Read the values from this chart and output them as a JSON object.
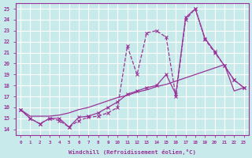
{
  "background_color": "#c8eaea",
  "grid_color": "#ffffff",
  "line_color": "#993399",
  "x_ticks": [
    0,
    1,
    2,
    3,
    4,
    5,
    6,
    7,
    8,
    9,
    10,
    11,
    12,
    13,
    14,
    15,
    16,
    17,
    18,
    19,
    20,
    21,
    22,
    23
  ],
  "y_ticks": [
    14,
    15,
    16,
    17,
    18,
    19,
    20,
    21,
    22,
    23,
    24,
    25
  ],
  "ylim": [
    13.5,
    25.5
  ],
  "xlim": [
    -0.5,
    23.5
  ],
  "xlabel": "Windchill (Refroidissement éolien,°C)",
  "series1": [
    15.8,
    15.0,
    14.5,
    15.0,
    15.0,
    14.2,
    15.1,
    15.2,
    15.5,
    16.0,
    16.5,
    17.2,
    17.5,
    17.8,
    18.0,
    19.0,
    17.2,
    24.2,
    25.0,
    22.3,
    21.1,
    19.8,
    18.5,
    17.8
  ],
  "series2": [
    15.8,
    15.0,
    14.5,
    15.0,
    14.8,
    14.2,
    14.8,
    15.1,
    15.2,
    15.5,
    16.0,
    21.6,
    19.0,
    22.8,
    23.0,
    22.4,
    17.0,
    24.0,
    25.0,
    22.2,
    21.0,
    19.8,
    18.5,
    17.8
  ],
  "series3": [
    15.8,
    15.2,
    15.2,
    15.2,
    15.3,
    15.5,
    15.8,
    16.0,
    16.3,
    16.6,
    16.9,
    17.1,
    17.4,
    17.6,
    17.9,
    18.1,
    18.4,
    18.7,
    19.0,
    19.3,
    19.6,
    19.9,
    17.5,
    17.8
  ]
}
